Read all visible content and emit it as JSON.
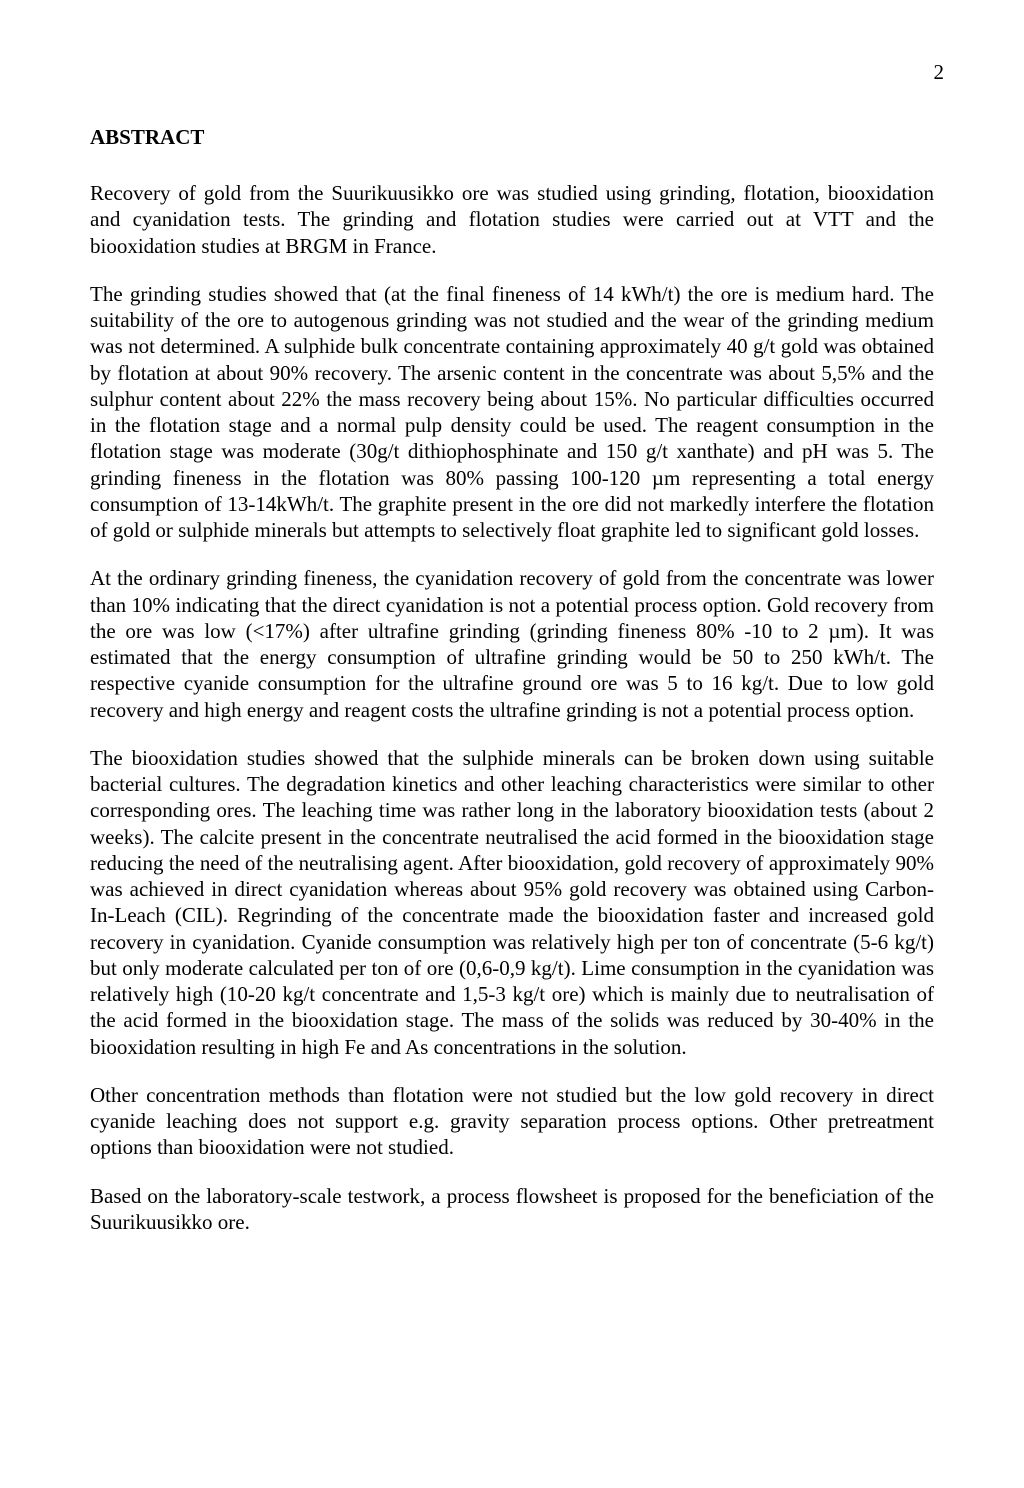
{
  "page_number": "2",
  "heading": "ABSTRACT",
  "paragraphs": {
    "p1": "Recovery of gold from the Suurikuusikko ore was studied using grinding, flotation, biooxidation and cyanidation tests. The grinding and flotation studies were carried out at VTT and the biooxidation studies at BRGM in France.",
    "p2": "The grinding studies showed that (at the final fineness of 14 kWh/t) the ore is medium hard. The suitability of the ore to autogenous grinding was not studied and the wear of the grinding medium was not determined. A sulphide bulk concentrate containing approximately 40 g/t gold was obtained by flotation at about 90% recovery. The arsenic content in the concentrate was about 5,5% and the sulphur content about 22% the mass recovery being about 15%. No particular difficulties occurred in the flotation stage and a normal pulp density could be used. The reagent consumption in the flotation stage was moderate (30g/t dithiophosphinate and 150 g/t xanthate) and pH was 5. The grinding fineness in the flotation was 80% passing 100-120 µm representing a total energy consumption of 13-14kWh/t. The graphite present in the ore did not markedly interfere the flotation of gold or sulphide minerals but attempts to selectively float graphite led to significant gold losses.",
    "p3": "At the ordinary grinding fineness, the cyanidation recovery of gold from the concentrate was lower than 10% indicating that the direct cyanidation is not a potential process option. Gold recovery from the ore was low (<17%) after ultrafine grinding (grinding fineness 80% -10 to 2 µm). It was estimated that the energy consumption of ultrafine grinding would be 50 to 250 kWh/t. The respective cyanide consumption for the ultrafine ground ore was 5 to 16 kg/t. Due to low gold recovery and high energy and reagent costs the ultrafine grinding is not a potential process option.",
    "p4": "The biooxidation studies showed that the sulphide minerals can be broken down using suitable bacterial cultures. The degradation kinetics and other leaching characteristics were similar to other corresponding ores. The leaching time was rather long in the laboratory biooxidation tests (about 2 weeks). The calcite present in the concentrate neutralised the acid formed in the biooxidation stage reducing the need of the neutralising agent. After biooxidation, gold recovery of approximately 90% was achieved in direct cyanidation whereas about 95% gold recovery was obtained using Carbon-In-Leach (CIL). Regrinding of the concentrate made the biooxidation faster and increased gold recovery in cyanidation. Cyanide consumption was relatively high per ton of concentrate (5-6 kg/t) but only moderate calculated per ton of ore (0,6-0,9 kg/t). Lime consumption in the cyanidation was relatively high (10-20 kg/t concentrate and 1,5-3 kg/t ore) which is mainly due to neutralisation of the acid formed in the biooxidation stage. The mass of the solids was reduced by 30-40% in the biooxidation resulting in high Fe and As concentrations in the solution.",
    "p5": "Other concentration methods than flotation were not studied but the low gold recovery in direct cyanide leaching does not support e.g. gravity separation process options. Other pretreatment options than biooxidation were not studied.",
    "p6": "Based on the laboratory-scale testwork, a process flowsheet is proposed for the beneficiation of the Suurikuusikko ore."
  }
}
